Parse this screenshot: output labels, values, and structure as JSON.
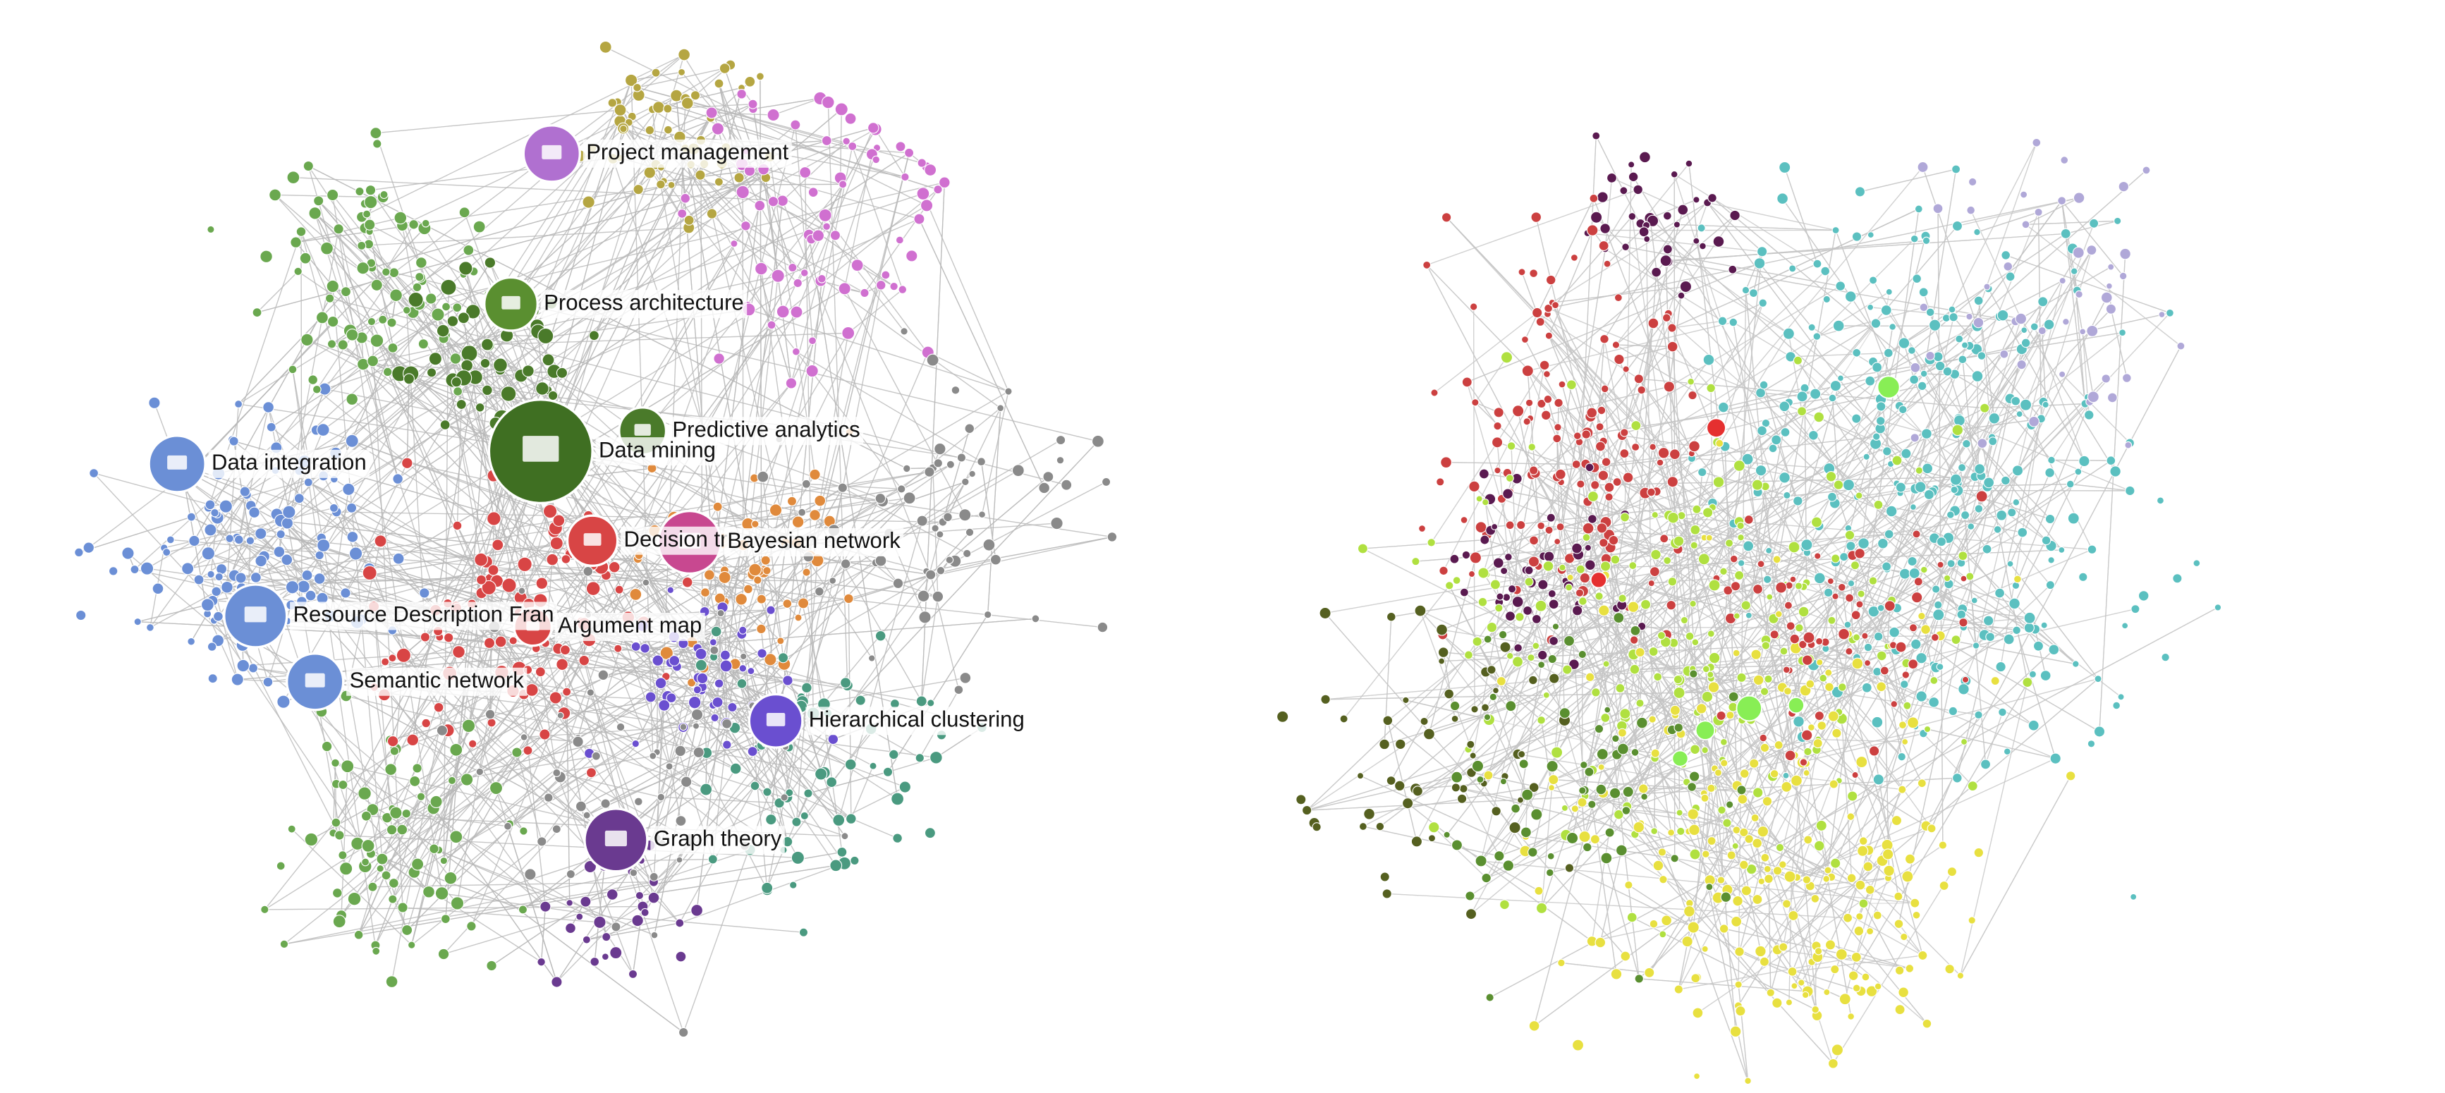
{
  "left_graph": {
    "labels": [
      "Project management",
      "Process architecture",
      "Predictive analytics",
      "Data mining",
      "Data integration",
      "Decision tr",
      "Bayesian network",
      "Resource Description Fran",
      "Argument map",
      "Semantic network",
      "Hierarchical clustering",
      "Graph theory"
    ]
  }
}
